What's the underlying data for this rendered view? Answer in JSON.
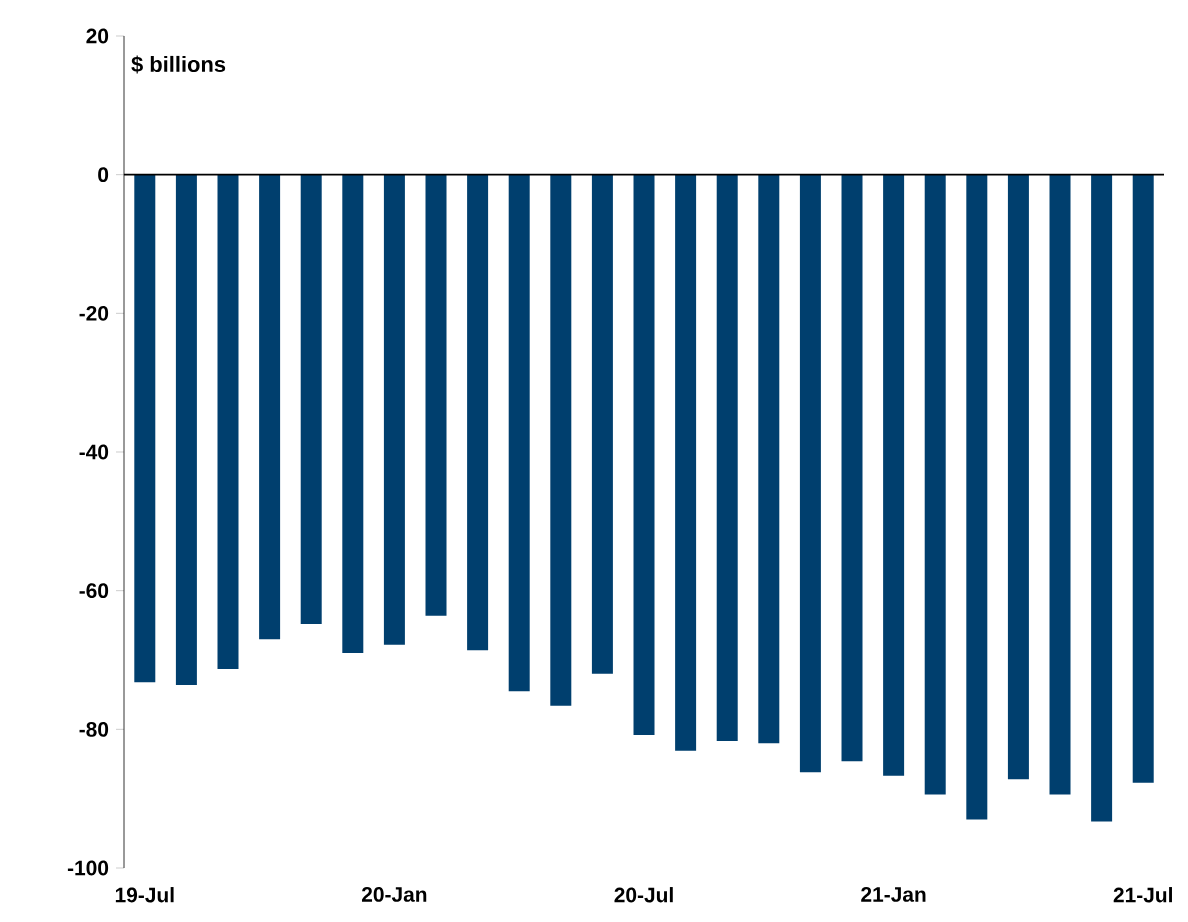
{
  "chart_data": {
    "type": "bar",
    "ylabel": "$ billions",
    "categories": [
      "19-Jul",
      null,
      null,
      null,
      null,
      null,
      "20-Jan",
      null,
      null,
      null,
      null,
      null,
      "20-Jul",
      null,
      null,
      null,
      null,
      null,
      "21-Jan",
      null,
      null,
      null,
      null,
      null,
      "21-Jul"
    ],
    "values": [
      -73.2,
      -73.6,
      -71.3,
      -67.0,
      -64.8,
      -69.0,
      -67.8,
      -63.6,
      -68.6,
      -74.5,
      -76.6,
      -72.0,
      -80.8,
      -83.1,
      -81.7,
      -82.0,
      -86.2,
      -84.6,
      -86.7,
      -89.4,
      -93.0,
      -87.2,
      -89.4,
      -93.3,
      -87.7
    ],
    "color": "#003f6e",
    "ylim": [
      -100,
      20
    ],
    "yticks": [
      -100,
      -80,
      -60,
      -40,
      -20,
      0,
      20
    ]
  }
}
